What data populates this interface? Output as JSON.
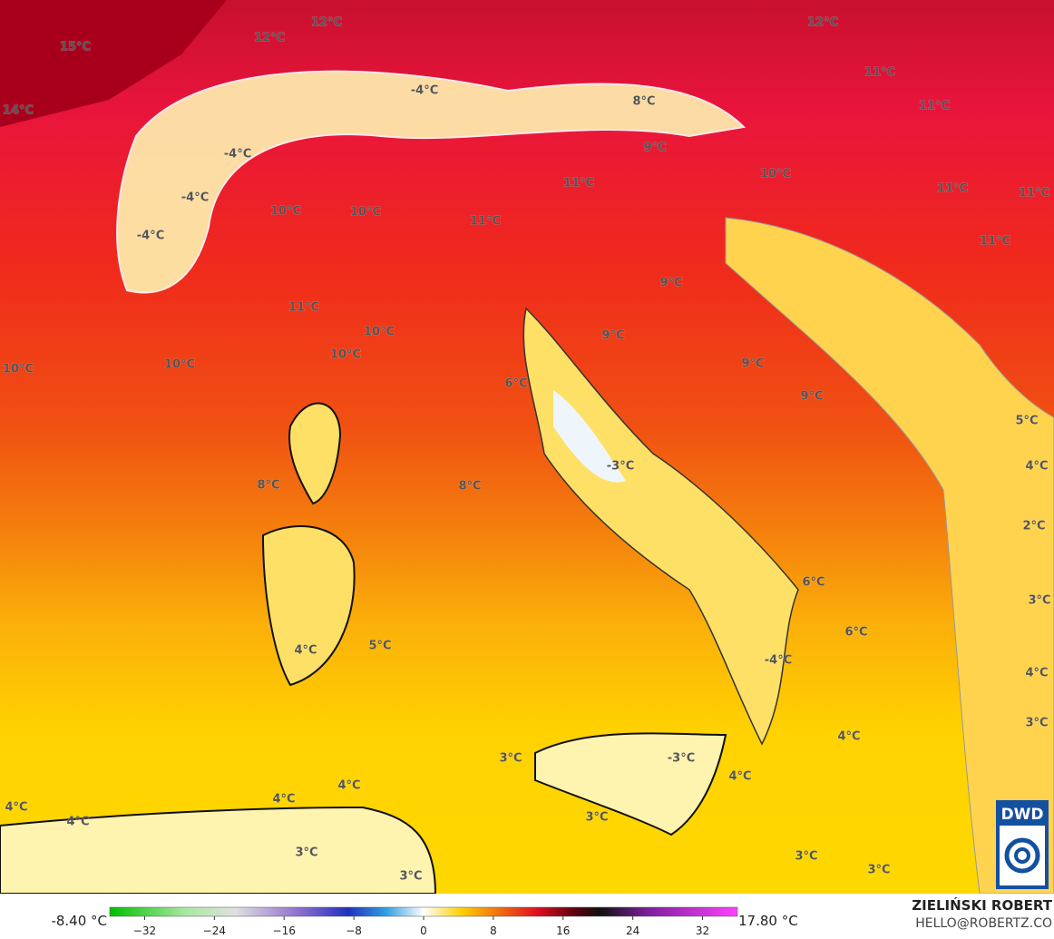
{
  "map": {
    "labels": [
      "15°C",
      "12°C",
      "12°C",
      "12°C",
      "11°C",
      "14°C",
      "-4°C",
      "8°C",
      "11°C",
      "-4°C",
      "9°C",
      "10°C",
      "-4°C",
      "11°C",
      "11°C",
      "11°C",
      "10°C",
      "10°C",
      "11°C",
      "-4°C",
      "11°C",
      "9°C",
      "11°C",
      "10°C",
      "9°C",
      "10°C",
      "10°C",
      "10°C",
      "9°C",
      "9°C",
      "6°C",
      "5°C",
      "-3°C",
      "4°C",
      "8°C",
      "8°C",
      "2°C",
      "6°C",
      "3°C",
      "6°C",
      "4°C",
      "5°C",
      "-4°C",
      "4°C",
      "4°C",
      "3°C",
      "3°C",
      "-3°C",
      "4°C",
      "4°C",
      "4°C",
      "4°C",
      "4°C",
      "3°C",
      "3°C",
      "3°C",
      "3°C",
      "3°C"
    ]
  },
  "colorbar": {
    "min_label": "-8.40 °C",
    "max_label": "17.80 °C",
    "range": [
      -36,
      36
    ],
    "ticks": [
      {
        "value": -32,
        "label": "−32"
      },
      {
        "value": -24,
        "label": "−24"
      },
      {
        "value": -16,
        "label": "−16"
      },
      {
        "value": -8,
        "label": "−8"
      },
      0,
      8,
      16,
      24,
      32
    ]
  },
  "credit": {
    "name": "ZIELIŃSKI ROBERT",
    "email": "HELLO@ROBERTZ.CO",
    "logo": "DWD"
  }
}
